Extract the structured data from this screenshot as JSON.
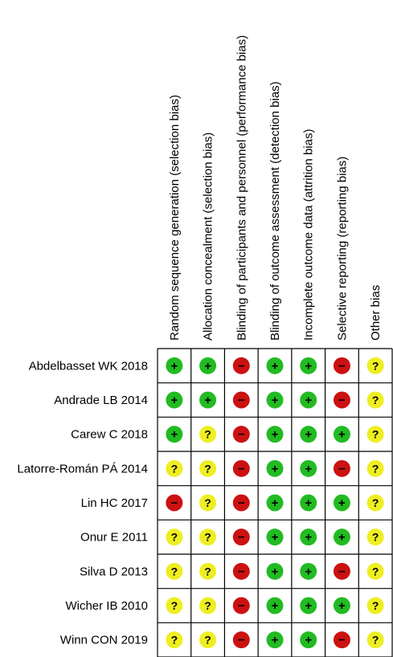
{
  "chart_data": {
    "type": "table",
    "domains": [
      "Random sequence generation (selection bias)",
      "Allocation concealment (selection bias)",
      "Blinding of participants and personnel (performance bias)",
      "Blinding of outcome assessment (detection bias)",
      "Incomplete outcome data (attrition bias)",
      "Selective reporting (reporting bias)",
      "Other bias"
    ],
    "studies": [
      "Abdelbasset WK 2018",
      "Andrade LB 2014",
      "Carew C 2018",
      "Latorre-Román PÁ 2014",
      "Lin HC 2017",
      "Onur E 2011",
      "Silva D 2013",
      "Wicher IB 2010",
      "Winn CON 2019"
    ],
    "judgements": [
      [
        "low",
        "low",
        "high",
        "low",
        "low",
        "high",
        "unclear"
      ],
      [
        "low",
        "low",
        "high",
        "low",
        "low",
        "high",
        "unclear"
      ],
      [
        "low",
        "unclear",
        "high",
        "low",
        "low",
        "low",
        "unclear"
      ],
      [
        "unclear",
        "unclear",
        "high",
        "low",
        "low",
        "high",
        "unclear"
      ],
      [
        "high",
        "unclear",
        "high",
        "low",
        "low",
        "low",
        "unclear"
      ],
      [
        "unclear",
        "unclear",
        "high",
        "low",
        "low",
        "low",
        "unclear"
      ],
      [
        "unclear",
        "unclear",
        "high",
        "low",
        "low",
        "high",
        "unclear"
      ],
      [
        "unclear",
        "unclear",
        "high",
        "low",
        "low",
        "low",
        "unclear"
      ],
      [
        "unclear",
        "unclear",
        "high",
        "low",
        "low",
        "high",
        "unclear"
      ]
    ],
    "symbols": {
      "low": "+",
      "high": "−",
      "unclear": "?"
    },
    "colors": {
      "low": "#22bb22",
      "high": "#cc1111",
      "unclear": "#eeee22",
      "grid": "#000000"
    }
  }
}
